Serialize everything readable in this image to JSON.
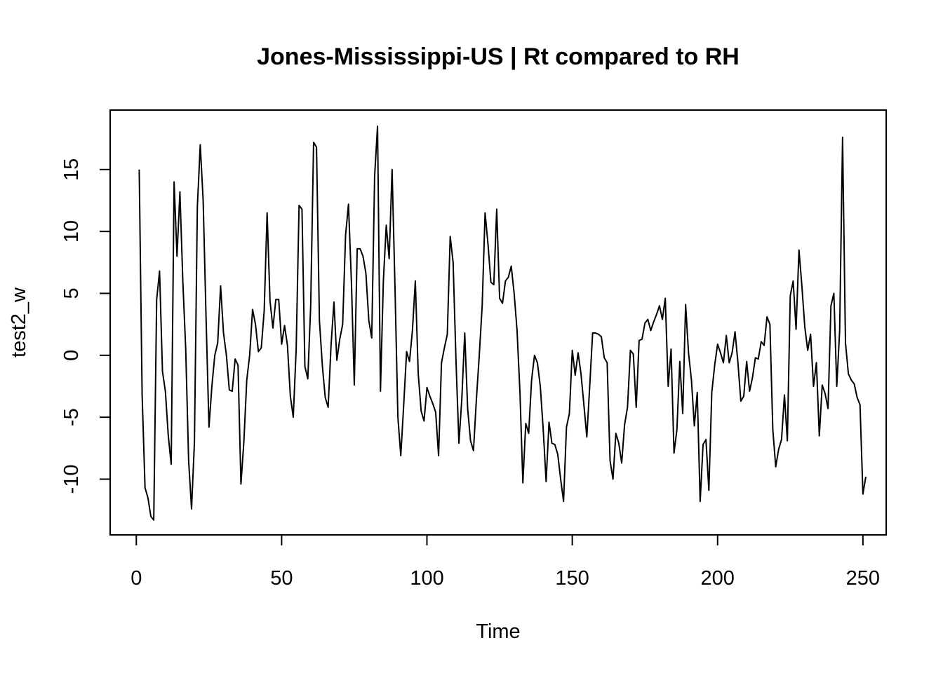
{
  "chart_data": {
    "type": "line",
    "title": "Jones-Mississippi-US | Rt compared to RH",
    "xlabel": "Time",
    "ylabel": "test2_w",
    "xlim": [
      -9,
      258
    ],
    "ylim": [
      -14.5,
      19.8
    ],
    "x_ticks": [
      0,
      50,
      100,
      150,
      200,
      250
    ],
    "y_ticks": [
      -10,
      -5,
      0,
      5,
      10,
      15
    ],
    "x_tick_labels": [
      "0",
      "50",
      "100",
      "150",
      "200",
      "250"
    ],
    "y_tick_labels": [
      "-10",
      "-5",
      "0",
      "5",
      "10",
      "15"
    ],
    "grid": false,
    "series": [
      {
        "color": "#000000",
        "x_start": 1,
        "values": [
          15.0,
          -3.2,
          -10.7,
          -11.5,
          -13.0,
          -13.3,
          4.5,
          6.8,
          -1.3,
          -2.9,
          -6.5,
          -8.8,
          14.0,
          8.0,
          13.2,
          6.0,
          0.5,
          -8.5,
          -12.4,
          -7.0,
          12.0,
          17.0,
          12.5,
          3.0,
          -5.8,
          -2.5,
          0.0,
          1.0,
          5.6,
          1.8,
          0.0,
          -2.8,
          -2.9,
          -0.3,
          -0.8,
          -10.4,
          -7.0,
          -2.0,
          0.0,
          3.7,
          2.5,
          0.3,
          0.6,
          3.6,
          11.5,
          4.4,
          2.2,
          4.5,
          4.5,
          0.9,
          2.4,
          0.8,
          -3.3,
          -5.0,
          0.5,
          12.1,
          11.8,
          -0.9,
          -1.9,
          4.0,
          17.2,
          16.8,
          2.8,
          -0.8,
          -3.4,
          -4.2,
          0.8,
          4.3,
          -0.4,
          1.3,
          2.5,
          9.7,
          12.2,
          6.0,
          -2.4,
          8.6,
          8.6,
          8.0,
          6.6,
          2.8,
          1.4,
          14.5,
          18.5,
          -2.9,
          6.0,
          10.5,
          7.8,
          15.0,
          5.5,
          -5.0,
          -8.1,
          -4.0,
          0.3,
          -0.5,
          2.0,
          6.0,
          -1.5,
          -4.5,
          -5.3,
          -2.6,
          -3.3,
          -3.9,
          -4.6,
          -8.1,
          -0.6,
          0.6,
          1.7,
          9.6,
          7.5,
          -0.5,
          -7.1,
          -3.5,
          1.8,
          -4.3,
          -6.9,
          -7.7,
          -3.6,
          0.0,
          4.0,
          11.5,
          9.0,
          5.9,
          5.7,
          11.8,
          4.6,
          4.2,
          6.0,
          6.3,
          7.2,
          5.0,
          2.0,
          -3.0,
          -10.3,
          -5.5,
          -6.3,
          -2.0,
          0.0,
          -0.6,
          -2.5,
          -6.0,
          -10.2,
          -5.4,
          -7.1,
          -7.2,
          -8.0,
          -10.0,
          -11.8,
          -5.8,
          -4.7,
          0.4,
          -1.6,
          0.2,
          -1.5,
          -4.0,
          -6.6,
          -2.5,
          1.8,
          1.8,
          1.7,
          1.5,
          -0.2,
          -0.6,
          -8.5,
          -10.0,
          -6.3,
          -7.1,
          -8.7,
          -5.6,
          -4.2,
          0.4,
          0.1,
          -4.2,
          1.2,
          1.3,
          2.6,
          2.9,
          2.0,
          2.7,
          3.3,
          4.0,
          2.9,
          4.6,
          -2.5,
          0.5,
          -7.9,
          -6.0,
          -0.5,
          -4.7,
          4.1,
          0.2,
          -2.0,
          -5.7,
          -3.0,
          -11.8,
          -7.2,
          -6.8,
          -10.9,
          -3.0,
          -0.8,
          0.9,
          0.2,
          -0.6,
          1.6,
          -0.6,
          0.2,
          1.9,
          -0.6,
          -3.7,
          -3.3,
          -0.5,
          -2.9,
          -1.8,
          -0.2,
          -0.3,
          1.1,
          0.8,
          3.1,
          2.5,
          -6.0,
          -9.0,
          -7.6,
          -6.8,
          -3.2,
          -6.9,
          4.8,
          6.0,
          2.1,
          8.5,
          5.6,
          2.3,
          0.4,
          1.7,
          -2.5,
          -0.6,
          -6.5,
          -2.4,
          -3.1,
          -4.3,
          4.0,
          5.0,
          -2.5,
          2.0,
          17.6,
          1.0,
          -1.5,
          -2.0,
          -2.3,
          -3.4,
          -4.0,
          -11.2,
          -9.8
        ]
      }
    ]
  }
}
